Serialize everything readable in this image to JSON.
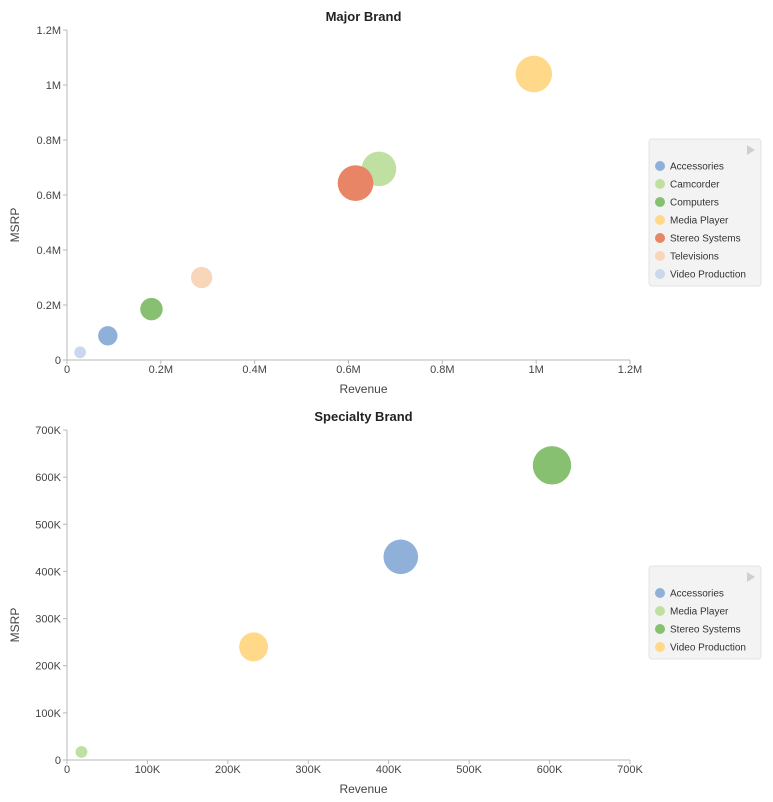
{
  "chart_data": [
    {
      "type": "bubble",
      "title": "Major Brand",
      "xlabel": "Revenue",
      "ylabel": "MSRP",
      "xlim": [
        0,
        1200000
      ],
      "ylim": [
        0,
        1200000
      ],
      "xticks": [
        {
          "value": 0,
          "label": "0"
        },
        {
          "value": 200000,
          "label": "0.2M"
        },
        {
          "value": 400000,
          "label": "0.4M"
        },
        {
          "value": 600000,
          "label": "0.6M"
        },
        {
          "value": 800000,
          "label": "0.8M"
        },
        {
          "value": 1000000,
          "label": "1M"
        },
        {
          "value": 1200000,
          "label": "1.2M"
        }
      ],
      "yticks": [
        {
          "value": 0,
          "label": "0"
        },
        {
          "value": 200000,
          "label": "0.2M"
        },
        {
          "value": 400000,
          "label": "0.4M"
        },
        {
          "value": 600000,
          "label": "0.6M"
        },
        {
          "value": 800000,
          "label": "0.8M"
        },
        {
          "value": 1000000,
          "label": "1M"
        },
        {
          "value": 1200000,
          "label": "1.2M"
        }
      ],
      "grid": false,
      "legend_position": "right",
      "series": [
        {
          "name": "Accessories",
          "color": "#8fb0d8",
          "x": 87000,
          "y": 88000,
          "size": 0.3
        },
        {
          "name": "Camcorder",
          "color": "#bfe0a0",
          "x": 665000,
          "y": 695000,
          "size": 0.7
        },
        {
          "name": "Computers",
          "color": "#86c070",
          "x": 180000,
          "y": 185000,
          "size": 0.38
        },
        {
          "name": "Media Player",
          "color": "#ffd88a",
          "x": 995000,
          "y": 1040000,
          "size": 0.75
        },
        {
          "name": "Stereo Systems",
          "color": "#e98567",
          "x": 615000,
          "y": 643000,
          "size": 0.73
        },
        {
          "name": "Televisions",
          "color": "#f7d6b9",
          "x": 287000,
          "y": 300000,
          "size": 0.35
        },
        {
          "name": "Video Production",
          "color": "#c9d8ec",
          "x": 28000,
          "y": 28000,
          "size": 0.1
        }
      ]
    },
    {
      "type": "bubble",
      "title": "Specialty Brand",
      "xlabel": "Revenue",
      "ylabel": "MSRP",
      "xlim": [
        0,
        700000
      ],
      "ylim": [
        0,
        700000
      ],
      "xticks": [
        {
          "value": 0,
          "label": "0"
        },
        {
          "value": 100000,
          "label": "100K"
        },
        {
          "value": 200000,
          "label": "200K"
        },
        {
          "value": 300000,
          "label": "300K"
        },
        {
          "value": 400000,
          "label": "400K"
        },
        {
          "value": 500000,
          "label": "500K"
        },
        {
          "value": 600000,
          "label": "600K"
        },
        {
          "value": 700000,
          "label": "700K"
        }
      ],
      "yticks": [
        {
          "value": 0,
          "label": "0"
        },
        {
          "value": 100000,
          "label": "100K"
        },
        {
          "value": 200000,
          "label": "200K"
        },
        {
          "value": 300000,
          "label": "300K"
        },
        {
          "value": 400000,
          "label": "400K"
        },
        {
          "value": 500000,
          "label": "500K"
        },
        {
          "value": 600000,
          "label": "600K"
        },
        {
          "value": 700000,
          "label": "700K"
        }
      ],
      "grid": false,
      "legend_position": "right",
      "series": [
        {
          "name": "Accessories",
          "color": "#8fb0d8",
          "x": 415000,
          "y": 431000,
          "size": 0.7
        },
        {
          "name": "Media Player",
          "color": "#bfe0a0",
          "x": 18000,
          "y": 17000,
          "size": 0.1
        },
        {
          "name": "Stereo Systems",
          "color": "#86c070",
          "x": 603000,
          "y": 625000,
          "size": 0.8
        },
        {
          "name": "Video Production",
          "color": "#ffd88a",
          "x": 232000,
          "y": 240000,
          "size": 0.55
        }
      ]
    }
  ]
}
